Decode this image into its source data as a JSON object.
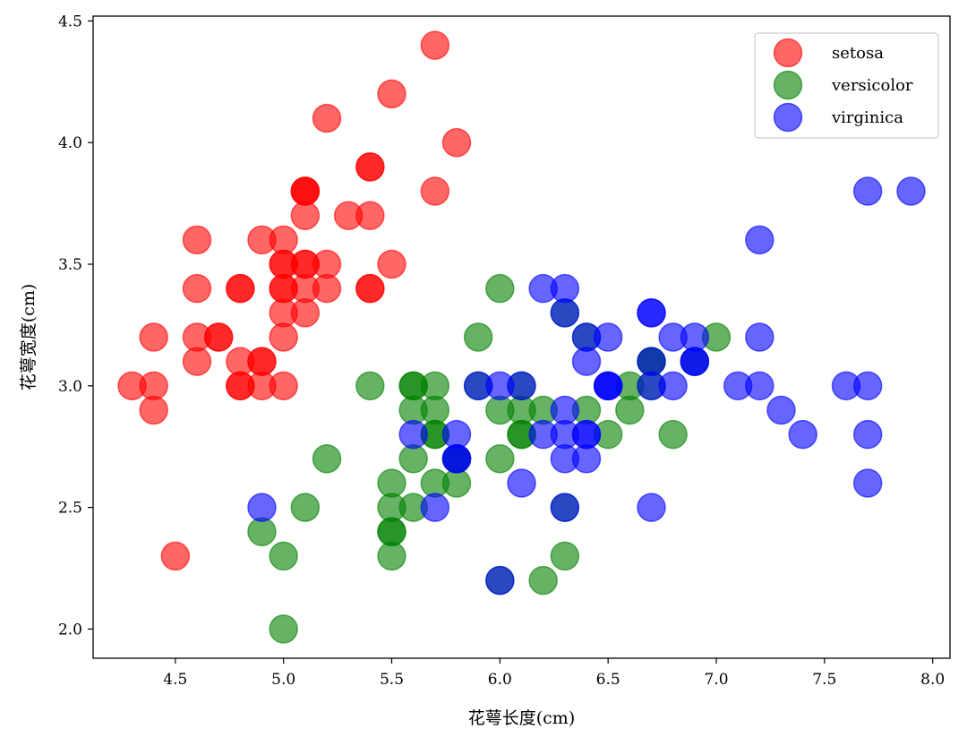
{
  "chart_data": {
    "type": "scatter",
    "title": "",
    "xlabel": "花萼长度(cm)",
    "ylabel": "花萼宽度(cm)",
    "xlim": [
      4.12,
      8.08
    ],
    "ylim": [
      1.88,
      4.52
    ],
    "xticks": [
      4.5,
      5.0,
      5.5,
      6.0,
      6.5,
      7.0,
      7.5,
      8.0
    ],
    "xtick_labels": [
      "4.5",
      "5.0",
      "5.5",
      "6.0",
      "6.5",
      "7.0",
      "7.5",
      "8.0"
    ],
    "yticks": [
      2.0,
      2.5,
      3.0,
      3.5,
      4.0,
      4.5
    ],
    "ytick_labels": [
      "2.0",
      "2.5",
      "3.0",
      "3.5",
      "4.0",
      "4.5"
    ],
    "grid": false,
    "legend_position": "top-right",
    "series": [
      {
        "name": "setosa",
        "color": "#ff0000",
        "points": [
          [
            5.1,
            3.5
          ],
          [
            4.9,
            3.0
          ],
          [
            4.7,
            3.2
          ],
          [
            4.6,
            3.1
          ],
          [
            5.0,
            3.6
          ],
          [
            5.4,
            3.9
          ],
          [
            4.6,
            3.4
          ],
          [
            5.0,
            3.4
          ],
          [
            4.4,
            2.9
          ],
          [
            4.9,
            3.1
          ],
          [
            5.4,
            3.7
          ],
          [
            4.8,
            3.4
          ],
          [
            4.8,
            3.0
          ],
          [
            4.3,
            3.0
          ],
          [
            5.8,
            4.0
          ],
          [
            5.7,
            4.4
          ],
          [
            5.4,
            3.9
          ],
          [
            5.1,
            3.5
          ],
          [
            5.7,
            3.8
          ],
          [
            5.1,
            3.8
          ],
          [
            5.4,
            3.4
          ],
          [
            5.1,
            3.7
          ],
          [
            4.6,
            3.6
          ],
          [
            5.1,
            3.3
          ],
          [
            4.8,
            3.4
          ],
          [
            5.0,
            3.0
          ],
          [
            5.0,
            3.4
          ],
          [
            5.2,
            3.5
          ],
          [
            5.2,
            3.4
          ],
          [
            4.7,
            3.2
          ],
          [
            4.8,
            3.1
          ],
          [
            5.4,
            3.4
          ],
          [
            5.2,
            4.1
          ],
          [
            5.5,
            4.2
          ],
          [
            4.9,
            3.1
          ],
          [
            5.0,
            3.2
          ],
          [
            5.5,
            3.5
          ],
          [
            4.9,
            3.6
          ],
          [
            4.4,
            3.0
          ],
          [
            5.1,
            3.4
          ],
          [
            5.0,
            3.5
          ],
          [
            4.5,
            2.3
          ],
          [
            4.4,
            3.2
          ],
          [
            5.0,
            3.5
          ],
          [
            5.1,
            3.8
          ],
          [
            4.8,
            3.0
          ],
          [
            5.1,
            3.8
          ],
          [
            4.6,
            3.2
          ],
          [
            5.3,
            3.7
          ],
          [
            5.0,
            3.3
          ]
        ]
      },
      {
        "name": "versicolor",
        "color": "#008000",
        "points": [
          [
            7.0,
            3.2
          ],
          [
            6.4,
            3.2
          ],
          [
            6.9,
            3.1
          ],
          [
            5.5,
            2.3
          ],
          [
            6.5,
            2.8
          ],
          [
            5.7,
            2.8
          ],
          [
            6.3,
            3.3
          ],
          [
            4.9,
            2.4
          ],
          [
            6.6,
            2.9
          ],
          [
            5.2,
            2.7
          ],
          [
            5.0,
            2.0
          ],
          [
            5.9,
            3.0
          ],
          [
            6.0,
            2.2
          ],
          [
            6.1,
            2.9
          ],
          [
            5.6,
            2.9
          ],
          [
            6.7,
            3.1
          ],
          [
            5.6,
            3.0
          ],
          [
            5.8,
            2.7
          ],
          [
            6.2,
            2.2
          ],
          [
            5.6,
            2.5
          ],
          [
            5.9,
            3.2
          ],
          [
            6.1,
            2.8
          ],
          [
            6.3,
            2.5
          ],
          [
            6.1,
            2.8
          ],
          [
            6.4,
            2.9
          ],
          [
            6.6,
            3.0
          ],
          [
            6.8,
            2.8
          ],
          [
            6.7,
            3.0
          ],
          [
            6.0,
            2.9
          ],
          [
            5.7,
            2.6
          ],
          [
            5.5,
            2.4
          ],
          [
            5.5,
            2.4
          ],
          [
            5.8,
            2.7
          ],
          [
            6.0,
            2.7
          ],
          [
            5.4,
            3.0
          ],
          [
            6.0,
            3.4
          ],
          [
            6.7,
            3.1
          ],
          [
            6.3,
            2.3
          ],
          [
            5.6,
            3.0
          ],
          [
            5.5,
            2.5
          ],
          [
            5.5,
            2.6
          ],
          [
            6.1,
            3.0
          ],
          [
            5.8,
            2.6
          ],
          [
            5.0,
            2.3
          ],
          [
            5.6,
            2.7
          ],
          [
            5.7,
            3.0
          ],
          [
            5.7,
            2.9
          ],
          [
            6.2,
            2.9
          ],
          [
            5.1,
            2.5
          ],
          [
            5.7,
            2.8
          ]
        ]
      },
      {
        "name": "virginica",
        "color": "#0000ff",
        "points": [
          [
            6.3,
            3.3
          ],
          [
            5.8,
            2.7
          ],
          [
            7.1,
            3.0
          ],
          [
            6.3,
            2.9
          ],
          [
            6.5,
            3.0
          ],
          [
            7.6,
            3.0
          ],
          [
            4.9,
            2.5
          ],
          [
            7.3,
            2.9
          ],
          [
            6.7,
            2.5
          ],
          [
            7.2,
            3.6
          ],
          [
            6.5,
            3.2
          ],
          [
            6.4,
            2.7
          ],
          [
            6.8,
            3.0
          ],
          [
            5.7,
            2.5
          ],
          [
            5.8,
            2.8
          ],
          [
            6.4,
            3.2
          ],
          [
            6.5,
            3.0
          ],
          [
            7.7,
            3.8
          ],
          [
            7.7,
            2.6
          ],
          [
            6.0,
            2.2
          ],
          [
            6.9,
            3.2
          ],
          [
            5.6,
            2.8
          ],
          [
            7.7,
            2.8
          ],
          [
            6.3,
            2.7
          ],
          [
            6.7,
            3.3
          ],
          [
            7.2,
            3.2
          ],
          [
            6.2,
            2.8
          ],
          [
            6.1,
            3.0
          ],
          [
            6.4,
            2.8
          ],
          [
            7.2,
            3.0
          ],
          [
            7.4,
            2.8
          ],
          [
            7.9,
            3.8
          ],
          [
            6.4,
            2.8
          ],
          [
            6.3,
            2.8
          ],
          [
            6.1,
            2.6
          ],
          [
            7.7,
            3.0
          ],
          [
            6.3,
            3.4
          ],
          [
            6.4,
            3.1
          ],
          [
            6.0,
            3.0
          ],
          [
            6.9,
            3.1
          ],
          [
            6.7,
            3.1
          ],
          [
            6.9,
            3.1
          ],
          [
            5.8,
            2.7
          ],
          [
            6.8,
            3.2
          ],
          [
            6.7,
            3.3
          ],
          [
            6.7,
            3.0
          ],
          [
            6.3,
            2.5
          ],
          [
            6.5,
            3.0
          ],
          [
            6.2,
            3.4
          ],
          [
            5.9,
            3.0
          ]
        ]
      }
    ]
  }
}
